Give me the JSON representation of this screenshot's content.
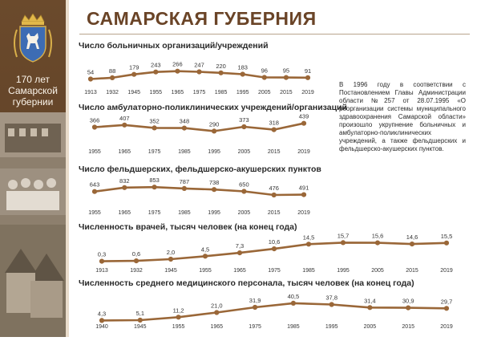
{
  "page": {
    "title": "САМАРСКАЯ ГУБЕРНИЯ",
    "anniversary_line1": "170 лет",
    "anniversary_line2": "Самарской",
    "anniversary_line3": "губернии"
  },
  "note": {
    "text": "В 1996 году в соответствии с Постановлением Главы Администрации области №257 от 28.07.1995 «О реорганизации системы муниципального здравоохранения Самарской области» произошло укрупнение больничных и амбулаторно-поликлинических учреждений, а также фельдшерских и фельдшерско-акушерских пунктов."
  },
  "colors": {
    "line": "#9a6738",
    "marker": "#9a6738",
    "sidebar": "#6b4a2c",
    "title": "#6a4427"
  },
  "chart_data": [
    {
      "type": "line",
      "title": "Число больничных организаций/учреждений",
      "x": [
        "1913",
        "1932",
        "1945",
        "1955",
        "1965",
        "1975",
        "1985",
        "1995",
        "2005",
        "2015",
        "2019"
      ],
      "values": [
        54,
        88,
        179,
        243,
        266,
        247,
        220,
        183,
        96,
        95,
        91
      ],
      "labels": [
        "54",
        "88",
        "179",
        "243",
        "266",
        "247",
        "220",
        "183",
        "96",
        "95",
        "91"
      ],
      "ylim": [
        0,
        280
      ]
    },
    {
      "type": "line",
      "title": "Число амбулаторно-поликлинических учреждений/организаций",
      "x": [
        "1955",
        "1965",
        "1975",
        "1985",
        "1995",
        "2005",
        "2015",
        "2019"
      ],
      "values": [
        366,
        407,
        352,
        348,
        290,
        373,
        318,
        439
      ],
      "labels": [
        "366",
        "407",
        "352",
        "348",
        "290",
        "373",
        "318",
        "439"
      ],
      "ylim": [
        250,
        450
      ]
    },
    {
      "type": "line",
      "title": "Число фельдшерских, фельдшерско-акушерских пунктов",
      "x": [
        "1955",
        "1965",
        "1975",
        "1985",
        "1995",
        "2005",
        "2015",
        "2019"
      ],
      "values": [
        643,
        832,
        853,
        787,
        738,
        650,
        476,
        491
      ],
      "labels": [
        "643",
        "832",
        "853",
        "787",
        "738",
        "650",
        "476",
        "491"
      ],
      "ylim": [
        400,
        900
      ]
    },
    {
      "type": "line",
      "title": "Численность врачей, тысяч человек (на конец года)",
      "x": [
        "1913",
        "1932",
        "1945",
        "1955",
        "1965",
        "1975",
        "1985",
        "1995",
        "2005",
        "2015",
        "2019"
      ],
      "values": [
        0.3,
        0.6,
        2.0,
        4.5,
        7.3,
        10.6,
        14.5,
        15.7,
        15.6,
        14.6,
        15.5
      ],
      "labels": [
        "0,3",
        "0,6",
        "2,0",
        "4,5",
        "7,3",
        "10,6",
        "14,5",
        "15,7",
        "15,6",
        "14,6",
        "15,5"
      ],
      "ylim": [
        0,
        16
      ]
    },
    {
      "type": "line",
      "title": "Численность среднего медицинского персонала, тысяч человек (на конец года)",
      "x": [
        "1940",
        "1945",
        "1955",
        "1965",
        "1975",
        "1985",
        "1995",
        "2005",
        "2015",
        "2019"
      ],
      "values": [
        4.3,
        5.1,
        11.2,
        21.0,
        31.9,
        40.5,
        37.8,
        31.4,
        30.9,
        29.7
      ],
      "labels": [
        "4,3",
        "5,1",
        "11,2",
        "21,0",
        "31,9",
        "40,5",
        "37,8",
        "31,4",
        "30,9",
        "29,7"
      ],
      "ylim": [
        0,
        42
      ]
    }
  ]
}
